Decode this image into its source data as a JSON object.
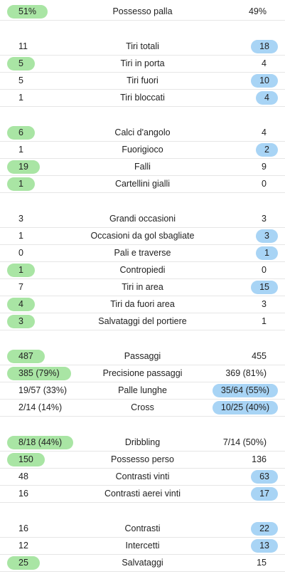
{
  "colors": {
    "home_highlight": "#a9e5a4",
    "away_highlight": "#a8d4f5",
    "divider": "#e6e6e6"
  },
  "groups": [
    {
      "rows": [
        {
          "label": "Possesso palla",
          "home": "51%",
          "away": "49%",
          "leader": "home"
        }
      ]
    },
    {
      "rows": [
        {
          "label": "Tiri totali",
          "home": "11",
          "away": "18",
          "leader": "away"
        },
        {
          "label": "Tiri in porta",
          "home": "5",
          "away": "4",
          "leader": "home"
        },
        {
          "label": "Tiri fuori",
          "home": "5",
          "away": "10",
          "leader": "away"
        },
        {
          "label": "Tiri bloccati",
          "home": "1",
          "away": "4",
          "leader": "away"
        }
      ]
    },
    {
      "rows": [
        {
          "label": "Calci d'angolo",
          "home": "6",
          "away": "4",
          "leader": "home"
        },
        {
          "label": "Fuorigioco",
          "home": "1",
          "away": "2",
          "leader": "away"
        },
        {
          "label": "Falli",
          "home": "19",
          "away": "9",
          "leader": "home"
        },
        {
          "label": "Cartellini gialli",
          "home": "1",
          "away": "0",
          "leader": "home"
        }
      ]
    },
    {
      "rows": [
        {
          "label": "Grandi occasioni",
          "home": "3",
          "away": "3",
          "leader": "none"
        },
        {
          "label": "Occasioni da gol sbagliate",
          "home": "1",
          "away": "3",
          "leader": "away"
        },
        {
          "label": "Pali e traverse",
          "home": "0",
          "away": "1",
          "leader": "away"
        },
        {
          "label": "Contropiedi",
          "home": "1",
          "away": "0",
          "leader": "home"
        },
        {
          "label": "Tiri in area",
          "home": "7",
          "away": "15",
          "leader": "away"
        },
        {
          "label": "Tiri da fuori area",
          "home": "4",
          "away": "3",
          "leader": "home"
        },
        {
          "label": "Salvataggi del portiere",
          "home": "3",
          "away": "1",
          "leader": "home"
        }
      ]
    },
    {
      "rows": [
        {
          "label": "Passaggi",
          "home": "487",
          "away": "455",
          "leader": "home"
        },
        {
          "label": "Precisione passaggi",
          "home": "385 (79%)",
          "away": "369 (81%)",
          "leader": "home"
        },
        {
          "label": "Palle lunghe",
          "home": "19/57 (33%)",
          "away": "35/64 (55%)",
          "leader": "away"
        },
        {
          "label": "Cross",
          "home": "2/14 (14%)",
          "away": "10/25 (40%)",
          "leader": "away"
        }
      ]
    },
    {
      "rows": [
        {
          "label": "Dribbling",
          "home": "8/18 (44%)",
          "away": "7/14 (50%)",
          "leader": "home"
        },
        {
          "label": "Possesso perso",
          "home": "150",
          "away": "136",
          "leader": "home"
        },
        {
          "label": "Contrasti vinti",
          "home": "48",
          "away": "63",
          "leader": "away"
        },
        {
          "label": "Contrasti aerei vinti",
          "home": "16",
          "away": "17",
          "leader": "away"
        }
      ]
    },
    {
      "rows": [
        {
          "label": "Contrasti",
          "home": "16",
          "away": "22",
          "leader": "away"
        },
        {
          "label": "Intercetti",
          "home": "12",
          "away": "13",
          "leader": "away"
        },
        {
          "label": "Salvataggi",
          "home": "25",
          "away": "15",
          "leader": "home"
        }
      ]
    }
  ]
}
